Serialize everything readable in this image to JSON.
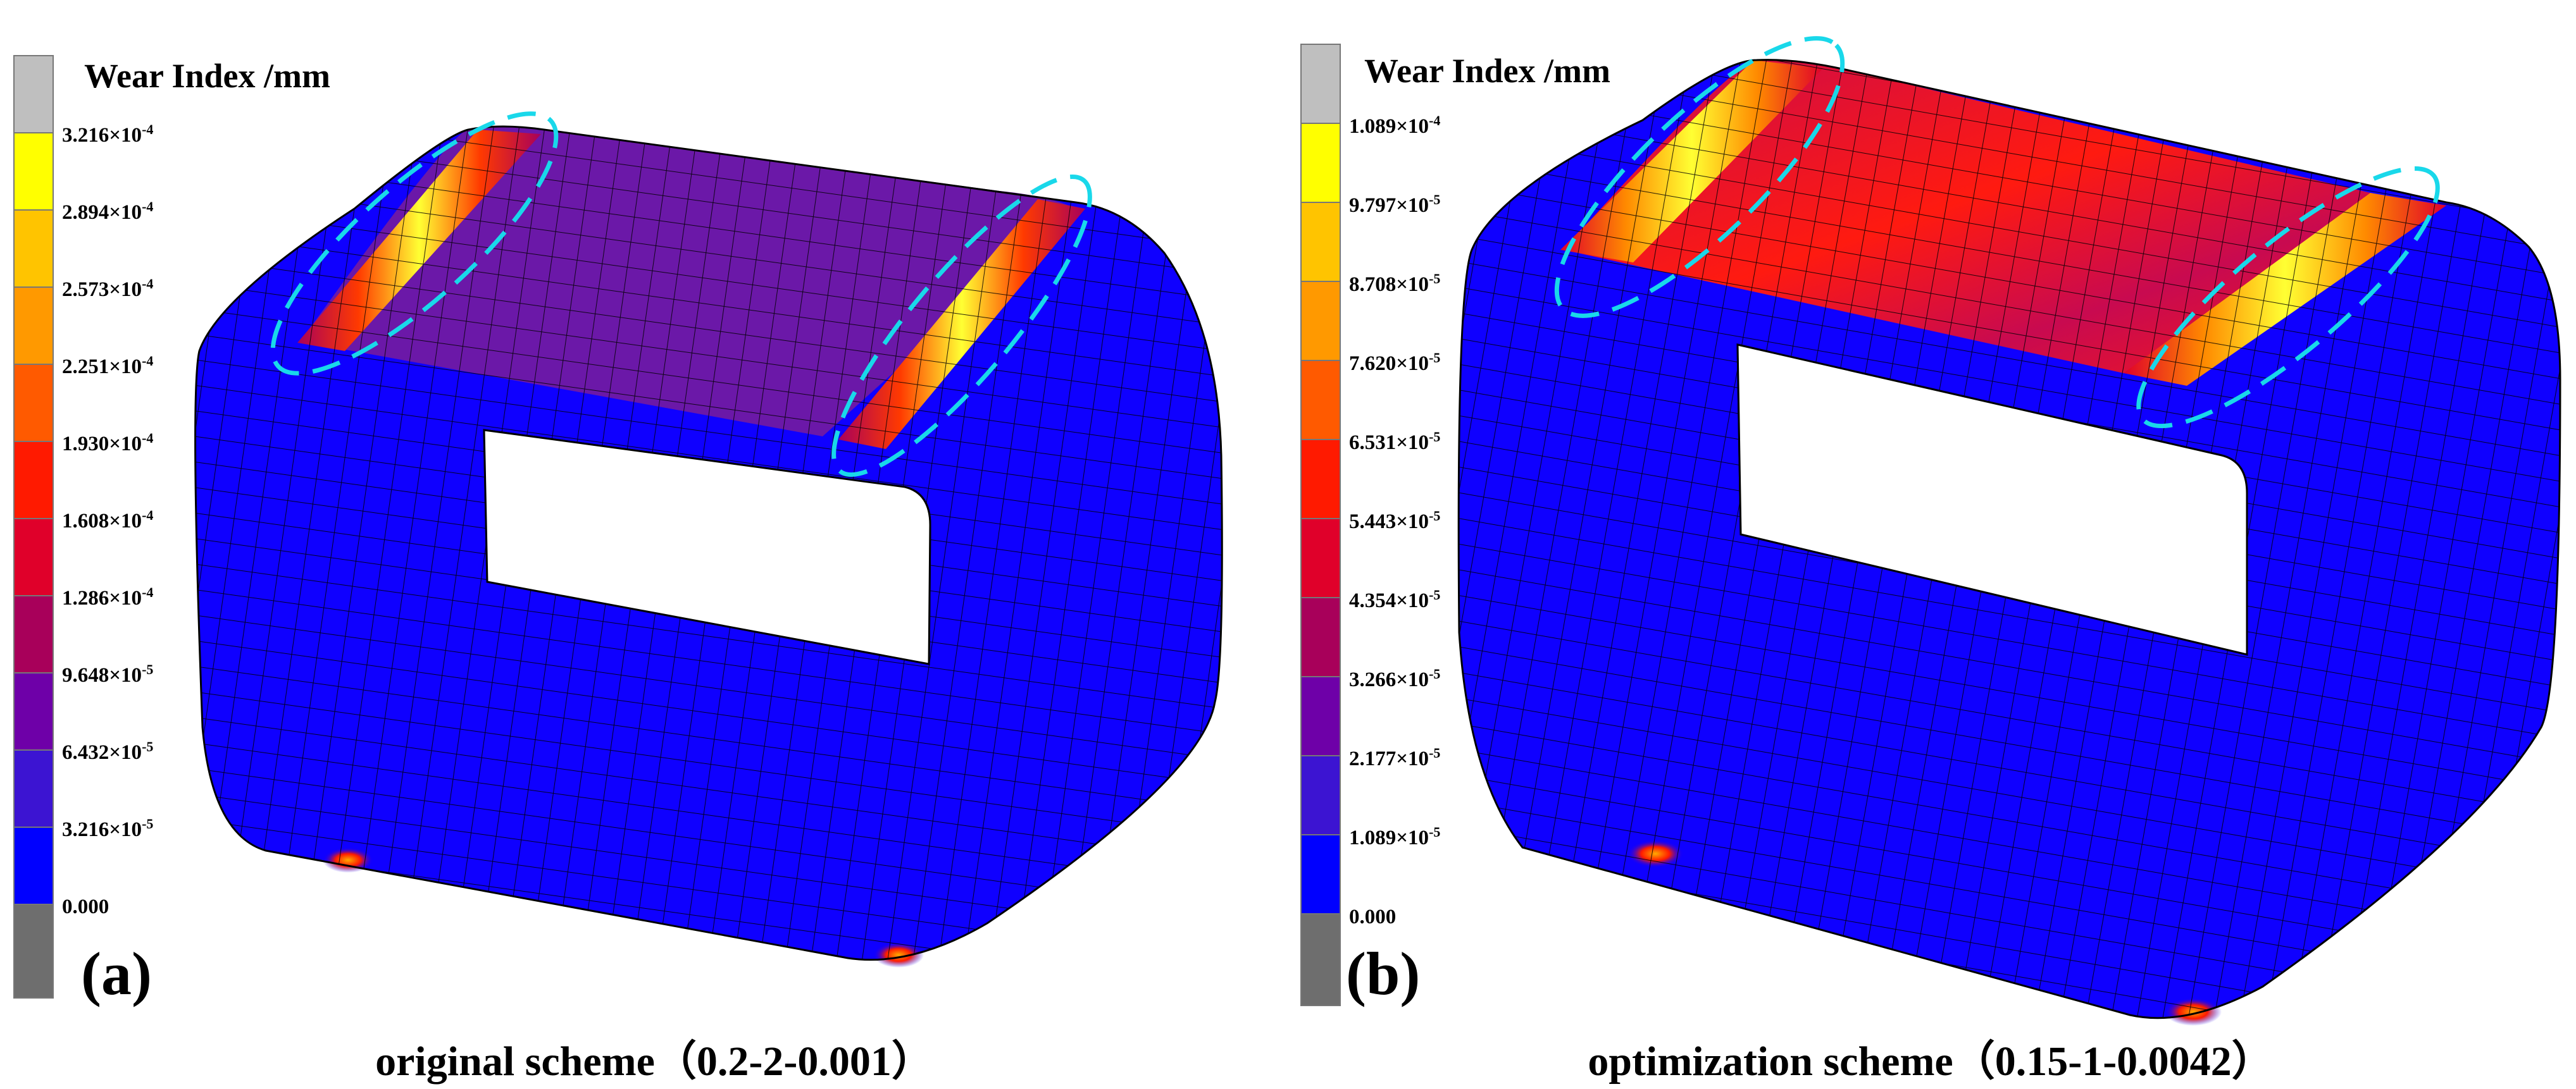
{
  "panels": [
    {
      "id": "a",
      "letter": "(a)",
      "legend_title": "Wear Index /mm",
      "caption": "original scheme（0.2-2-0.001）",
      "ticks": [
        {
          "mantissa": "3.216×10",
          "exp": "-4"
        },
        {
          "mantissa": "2.894×10",
          "exp": "-4"
        },
        {
          "mantissa": "2.573×10",
          "exp": "-4"
        },
        {
          "mantissa": "2.251×10",
          "exp": "-4"
        },
        {
          "mantissa": "1.930×10",
          "exp": "-4"
        },
        {
          "mantissa": "1.608×10",
          "exp": "-4"
        },
        {
          "mantissa": "1.286×10",
          "exp": "-4"
        },
        {
          "mantissa": "9.648×10",
          "exp": "-5"
        },
        {
          "mantissa": "6.432×10",
          "exp": "-5"
        },
        {
          "mantissa": "3.216×10",
          "exp": "-5"
        },
        {
          "mantissa": "0.000",
          "exp": ""
        }
      ]
    },
    {
      "id": "b",
      "letter": "(b)",
      "legend_title": "Wear Index /mm",
      "caption": "optimization scheme（0.15-1-0.0042）",
      "ticks": [
        {
          "mantissa": "1.089×10",
          "exp": "-4"
        },
        {
          "mantissa": "9.797×10",
          "exp": "-5"
        },
        {
          "mantissa": "8.708×10",
          "exp": "-5"
        },
        {
          "mantissa": "7.620×10",
          "exp": "-5"
        },
        {
          "mantissa": "6.531×10",
          "exp": "-5"
        },
        {
          "mantissa": "5.443×10",
          "exp": "-5"
        },
        {
          "mantissa": "4.354×10",
          "exp": "-5"
        },
        {
          "mantissa": "3.266×10",
          "exp": "-5"
        },
        {
          "mantissa": "2.177×10",
          "exp": "-5"
        },
        {
          "mantissa": "1.089×10",
          "exp": "-5"
        },
        {
          "mantissa": "0.000",
          "exp": ""
        }
      ]
    }
  ],
  "colorbar_colors": [
    "#bfbfbf",
    "#ffff00",
    "#ffc400",
    "#ff9900",
    "#ff5a00",
    "#ff1a00",
    "#e0002a",
    "#a8005a",
    "#6e00a8",
    "#3c14d2",
    "#1428e6",
    "#0000ff",
    "#6e6e6e"
  ],
  "colors": {
    "body_blue": "#0f00ff",
    "top_purple": "#6b18a8",
    "top_red": "#d40a4e",
    "mesh_line": "#000000",
    "highlight_ellipse": "#19d8ea"
  }
}
